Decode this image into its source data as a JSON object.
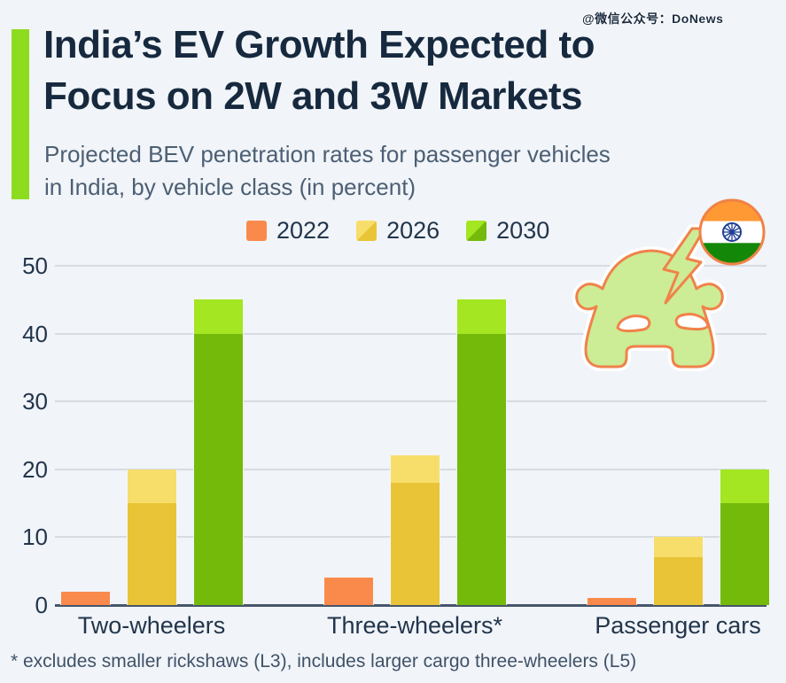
{
  "watermark": "@微信公众号：DoNews",
  "header": {
    "title_line1": "India’s EV Growth Expected to",
    "title_line2": "Focus on 2W and 3W Markets",
    "subtitle_line1": "Projected BEV penetration rates for passenger vehicles",
    "subtitle_line2": "in India, by vehicle class (in percent)",
    "accent_color": "#8edc20"
  },
  "footnote": "* excludes smaller rickshaws (L3), includes larger cargo three-wheelers (L5)",
  "illustration": {
    "name": "electric-car-with-lightning-bolt-and-india-flag-icon",
    "car_fill": "#cdec96",
    "car_outline": "#f0824a",
    "flag_saffron": "#ff9933",
    "flag_white": "#ffffff",
    "flag_green": "#138808",
    "flag_chakra": "#1d3e94",
    "flag_ring": "#ef8246"
  },
  "chart_data": {
    "type": "bar",
    "title": "India’s EV Growth Expected to Focus on 2W and 3W Markets",
    "subtitle": "Projected BEV penetration rates for passenger vehicles in India, by vehicle class (in percent)",
    "unit": "percent",
    "categories": [
      "Two-wheelers",
      "Three-wheelers*",
      "Passenger cars"
    ],
    "series": [
      {
        "name": "2022",
        "kind": "single",
        "values": [
          2,
          4,
          1
        ],
        "color": "#fa8a4b"
      },
      {
        "name": "2026",
        "kind": "range",
        "low": [
          15,
          18,
          7
        ],
        "high": [
          20,
          22,
          10
        ],
        "color_low": "#e9c436",
        "color_high": "#f7de6a"
      },
      {
        "name": "2030",
        "kind": "range",
        "low": [
          40,
          40,
          15
        ],
        "high": [
          45,
          45,
          20
        ],
        "color_low": "#74ba0b",
        "color_high": "#a3e621"
      }
    ],
    "ylim": [
      0,
      50
    ],
    "yticks": [
      0,
      10,
      20,
      30,
      40,
      50
    ],
    "grid": true,
    "legend_position": "top-center"
  }
}
